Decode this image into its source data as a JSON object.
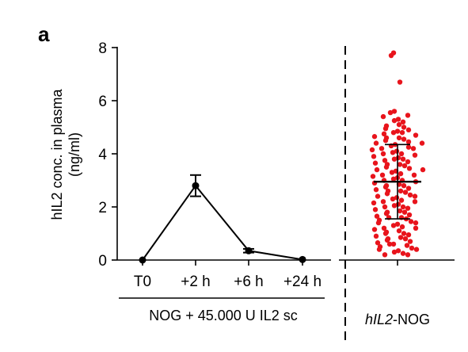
{
  "panel_label": "a",
  "chart_data": {
    "type": "scatter",
    "ylabel_line1": "hIL2 conc. in plasma",
    "ylabel_line2": "(ng/ml)",
    "ylim": [
      0,
      8
    ],
    "yticks": [
      "0",
      "2",
      "4",
      "6",
      "8"
    ],
    "grid": false,
    "left_panel": {
      "type": "line",
      "categories": [
        "T0",
        "+2 h",
        "+6 h",
        "+24 h"
      ],
      "values": [
        0.0,
        2.8,
        0.35,
        0.02
      ],
      "error": [
        0.0,
        0.4,
        0.07,
        0.0
      ],
      "color": "#000000",
      "group_label": "NOG + 45.000 U IL2 sc"
    },
    "right_panel": {
      "type": "scatter",
      "label_italic": "hIL2",
      "label_rest": "-NOG",
      "color": "#e8141c",
      "mean": 2.95,
      "sd_low": 1.55,
      "sd_high": 4.35,
      "points": [
        7.8,
        7.7,
        6.7,
        5.6,
        5.55,
        5.45,
        5.4,
        5.3,
        5.25,
        5.2,
        5.1,
        5.05,
        5.0,
        4.95,
        4.9,
        4.85,
        4.8,
        4.8,
        4.75,
        4.7,
        4.65,
        4.6,
        4.6,
        4.55,
        4.5,
        4.45,
        4.4,
        4.4,
        4.35,
        4.3,
        4.25,
        4.2,
        4.2,
        4.15,
        4.1,
        4.05,
        4.0,
        4.0,
        3.95,
        3.9,
        3.85,
        3.8,
        3.8,
        3.75,
        3.7,
        3.65,
        3.6,
        3.6,
        3.55,
        3.5,
        3.45,
        3.4,
        3.4,
        3.35,
        3.3,
        3.25,
        3.2,
        3.2,
        3.15,
        3.1,
        3.05,
        3.0,
        3.0,
        2.95,
        2.9,
        2.85,
        2.8,
        2.8,
        2.75,
        2.7,
        2.65,
        2.6,
        2.6,
        2.55,
        2.5,
        2.45,
        2.4,
        2.4,
        2.35,
        2.3,
        2.25,
        2.2,
        2.2,
        2.15,
        2.1,
        2.05,
        2.0,
        2.0,
        1.95,
        1.9,
        1.85,
        1.8,
        1.8,
        1.75,
        1.7,
        1.65,
        1.6,
        1.6,
        1.55,
        1.5,
        1.45,
        1.4,
        1.4,
        1.35,
        1.3,
        1.25,
        1.2,
        1.2,
        1.15,
        1.1,
        1.05,
        1.0,
        1.0,
        0.95,
        0.9,
        0.85,
        0.8,
        0.8,
        0.75,
        0.7,
        0.65,
        0.6,
        0.6,
        0.55,
        0.5,
        0.45,
        0.4,
        0.4,
        0.35,
        0.3,
        0.25,
        0.2,
        0.2
      ]
    }
  }
}
